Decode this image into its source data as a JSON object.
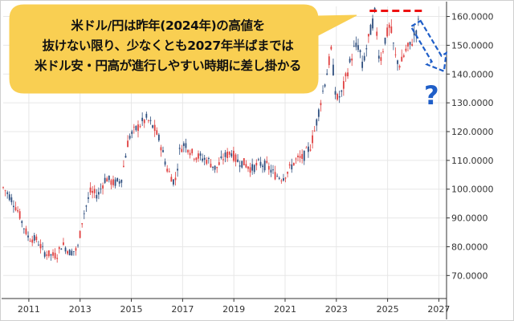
{
  "colors": {
    "up": "#e04040",
    "down": "#2f4f7f",
    "accent": "#1f5ec8",
    "resistance": "#ee1111",
    "callout": "#f9cf52",
    "grid": "#e7e7e7"
  },
  "callout": {
    "text": "米ドル/円は昨年(2024年)の高値を\n抜けない限り、少なくとも2027年半ばまでは\n米ドル安・円高が進行しやすい時期に差し掛かる"
  },
  "annotations": {
    "question_mark": "?"
  },
  "chart_data": {
    "type": "candlestick",
    "xlim": [
      2010.0,
      2027.3
    ],
    "ylim": [
      62.0,
      163.5
    ],
    "grid": true,
    "x_ticks": [
      {
        "value": 2011,
        "label": "2011"
      },
      {
        "value": 2013,
        "label": "2013"
      },
      {
        "value": 2015,
        "label": "2015"
      },
      {
        "value": 2017,
        "label": "2017"
      },
      {
        "value": 2019,
        "label": "2019"
      },
      {
        "value": 2021,
        "label": "2021"
      },
      {
        "value": 2023,
        "label": "2023"
      },
      {
        "value": 2025,
        "label": "2025"
      },
      {
        "value": 2027,
        "label": "2027"
      }
    ],
    "y_ticks": [
      {
        "value": 70,
        "label": "70.0000"
      },
      {
        "value": 80,
        "label": "80.0000"
      },
      {
        "value": 90,
        "label": "90.0000"
      },
      {
        "value": 100,
        "label": "100.0000"
      },
      {
        "value": 110,
        "label": "110.0000"
      },
      {
        "value": 120,
        "label": "120.0000"
      },
      {
        "value": 130,
        "label": "130.0000"
      },
      {
        "value": 140,
        "label": "140.0000"
      },
      {
        "value": 150,
        "label": "150.0000"
      },
      {
        "value": 160,
        "label": "160.0000"
      }
    ],
    "price_path": [
      [
        2010.0,
        100.5
      ],
      [
        2010.3,
        97.0
      ],
      [
        2010.6,
        92.0
      ],
      [
        2010.8,
        87.0
      ],
      [
        2011.0,
        83.0
      ],
      [
        2011.3,
        82.5
      ],
      [
        2011.6,
        78.0
      ],
      [
        2011.9,
        77.0
      ],
      [
        2012.1,
        77.0
      ],
      [
        2012.3,
        81.0
      ],
      [
        2012.6,
        78.0
      ],
      [
        2012.9,
        79.0
      ],
      [
        2013.1,
        90.0
      ],
      [
        2013.4,
        99.0
      ],
      [
        2013.7,
        98.0
      ],
      [
        2014.0,
        104.0
      ],
      [
        2014.3,
        102.0
      ],
      [
        2014.6,
        103.0
      ],
      [
        2014.9,
        118.0
      ],
      [
        2015.1,
        120.0
      ],
      [
        2015.4,
        123.0
      ],
      [
        2015.6,
        124.5
      ],
      [
        2015.9,
        121.0
      ],
      [
        2016.1,
        117.0
      ],
      [
        2016.4,
        107.0
      ],
      [
        2016.7,
        102.0
      ],
      [
        2016.9,
        114.0
      ],
      [
        2017.1,
        116.0
      ],
      [
        2017.4,
        112.0
      ],
      [
        2017.7,
        111.0
      ],
      [
        2018.0,
        110.0
      ],
      [
        2018.3,
        107.0
      ],
      [
        2018.6,
        111.0
      ],
      [
        2018.9,
        113.0
      ],
      [
        2019.1,
        110.0
      ],
      [
        2019.4,
        109.0
      ],
      [
        2019.7,
        107.0
      ],
      [
        2020.0,
        109.0
      ],
      [
        2020.3,
        108.0
      ],
      [
        2020.6,
        105.0
      ],
      [
        2020.9,
        104.0
      ],
      [
        2021.1,
        106.0
      ],
      [
        2021.4,
        110.0
      ],
      [
        2021.7,
        111.0
      ],
      [
        2022.0,
        115.0
      ],
      [
        2022.2,
        122.0
      ],
      [
        2022.4,
        131.0
      ],
      [
        2022.6,
        139.0
      ],
      [
        2022.8,
        148.0
      ],
      [
        2023.0,
        131.0
      ],
      [
        2023.2,
        133.0
      ],
      [
        2023.5,
        143.0
      ],
      [
        2023.7,
        149.0
      ],
      [
        2023.9,
        150.0
      ],
      [
        2024.0,
        142.0
      ],
      [
        2024.2,
        150.0
      ],
      [
        2024.5,
        161.0
      ],
      [
        2024.7,
        144.0
      ],
      [
        2024.9,
        152.0
      ],
      [
        2025.1,
        157.0
      ],
      [
        2025.3,
        146.0
      ],
      [
        2025.5,
        143.0
      ],
      [
        2025.7,
        148.0
      ],
      [
        2025.9,
        150.0
      ],
      [
        2026.1,
        155.0
      ],
      [
        2026.2,
        157.5
      ]
    ],
    "resistance_level": 161.95,
    "resistance_range": [
      2024.3,
      2026.4
    ],
    "forecast_arrow": {
      "from": [
        2026.1,
        157.5
      ],
      "to": [
        2027.2,
        141.0
      ]
    }
  }
}
